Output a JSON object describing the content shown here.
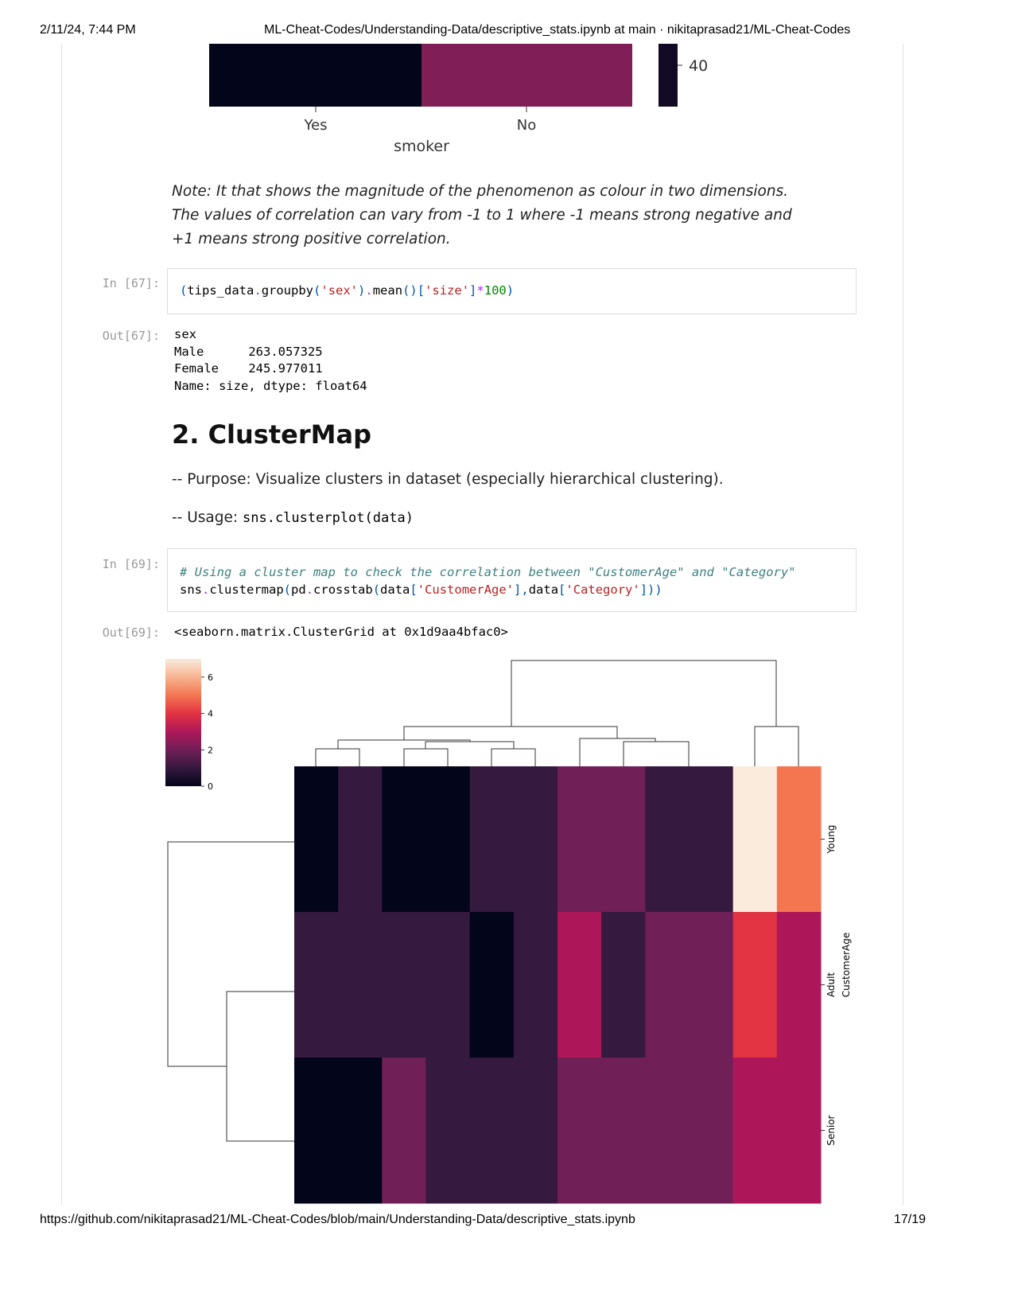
{
  "header": {
    "datetime": "2/11/24, 7:44 PM",
    "title": "ML-Cheat-Codes/Understanding-Data/descriptive_stats.ipynb at main · nikitaprasad21/ML-Cheat-Codes"
  },
  "footer": {
    "url": "https://github.com/nikitaprasad21/ML-Cheat-Codes/blob/main/Understanding-Data/descriptive_stats.ipynb",
    "page": "17/19"
  },
  "top_figure": {
    "colorbar_tick": 40,
    "xticks": [
      "Yes",
      "No"
    ],
    "xlabel": "smoker"
  },
  "note": "Note: It that shows the magnitude of the phenomenon as colour in two dimensions. The values of correlation can vary from -1 to 1 where -1 means strong negative and +1 means strong positive correlation.",
  "cell_67": {
    "in_prompt": "In [67]:",
    "source": [
      [
        {
          "text": "(",
          "color": "#0055aa"
        },
        {
          "text": "tips_data",
          "color": "#000000"
        },
        {
          "text": ".",
          "color": "#aa22ff"
        },
        {
          "text": "groupby",
          "color": "#000000"
        },
        {
          "text": "(",
          "color": "#0055aa"
        },
        {
          "text": "'sex'",
          "color": "#ba2121"
        },
        {
          "text": ")",
          "color": "#0055aa"
        },
        {
          "text": ".",
          "color": "#aa22ff"
        },
        {
          "text": "mean",
          "color": "#000000"
        },
        {
          "text": "()[",
          "color": "#0055aa"
        },
        {
          "text": "'size'",
          "color": "#ba2121"
        },
        {
          "text": "]",
          "color": "#0055aa"
        },
        {
          "text": "*",
          "color": "#aa22ff"
        },
        {
          "text": "100",
          "color": "#008800"
        },
        {
          "text": ")",
          "color": "#0055aa"
        }
      ]
    ],
    "out_prompt": "Out[67]:",
    "output": [
      "sex",
      "Male      263.057325",
      "Female    245.977011",
      "Name: size, dtype: float64"
    ]
  },
  "section": {
    "heading": "2. ClusterMap",
    "purpose": "-- Purpose: Visualize clusters in dataset (especially hierarchical clustering).",
    "usage_label": "-- Usage:",
    "usage_code": "sns.clusterplot(data)"
  },
  "cell_69": {
    "in_prompt": "In [69]:",
    "source": [
      [
        {
          "text": "# Using a cluster map to check the correlation between \"CustomerAge\" and \"Category\"",
          "color": "#408080",
          "style": "italic"
        }
      ],
      [
        {
          "text": "sns",
          "color": "#000000"
        },
        {
          "text": ".",
          "color": "#aa22ff"
        },
        {
          "text": "clustermap",
          "color": "#000000"
        },
        {
          "text": "(",
          "color": "#0055aa"
        },
        {
          "text": "pd",
          "color": "#000000"
        },
        {
          "text": ".",
          "color": "#aa22ff"
        },
        {
          "text": "crosstab",
          "color": "#000000"
        },
        {
          "text": "(",
          "color": "#0055aa"
        },
        {
          "text": "data",
          "color": "#000000"
        },
        {
          "text": "[",
          "color": "#0055aa"
        },
        {
          "text": "'CustomerAge'",
          "color": "#ba2121"
        },
        {
          "text": "],",
          "color": "#0055aa"
        },
        {
          "text": "data",
          "color": "#000000"
        },
        {
          "text": "[",
          "color": "#0055aa"
        },
        {
          "text": "'Category'",
          "color": "#ba2121"
        },
        {
          "text": "]))",
          "color": "#0055aa"
        }
      ]
    ],
    "out_prompt": "Out[69]:",
    "output": [
      "<seaborn.matrix.ClusterGrid at 0x1d9aa4bfac0>"
    ]
  },
  "chart_data": {
    "type": "heatmap",
    "rows": [
      "Young",
      "Adult",
      "Senior"
    ],
    "row_axis_label": "CustomerAge",
    "values": [
      [
        0,
        1,
        0,
        0,
        1,
        1,
        2,
        2,
        1,
        1,
        7,
        5
      ],
      [
        1,
        1,
        1,
        1,
        0,
        1,
        3,
        1,
        2,
        2,
        4,
        3
      ],
      [
        0,
        0,
        2,
        1,
        1,
        1,
        2,
        2,
        2,
        2,
        3,
        3
      ]
    ],
    "zlim": [
      0,
      7
    ],
    "zticks": [
      0,
      2,
      4,
      6
    ],
    "colormap": [
      "#03051a",
      "#35193e",
      "#701f57",
      "#ad1759",
      "#e13342",
      "#f37651",
      "#f6b48f",
      "#faebdd"
    ]
  }
}
